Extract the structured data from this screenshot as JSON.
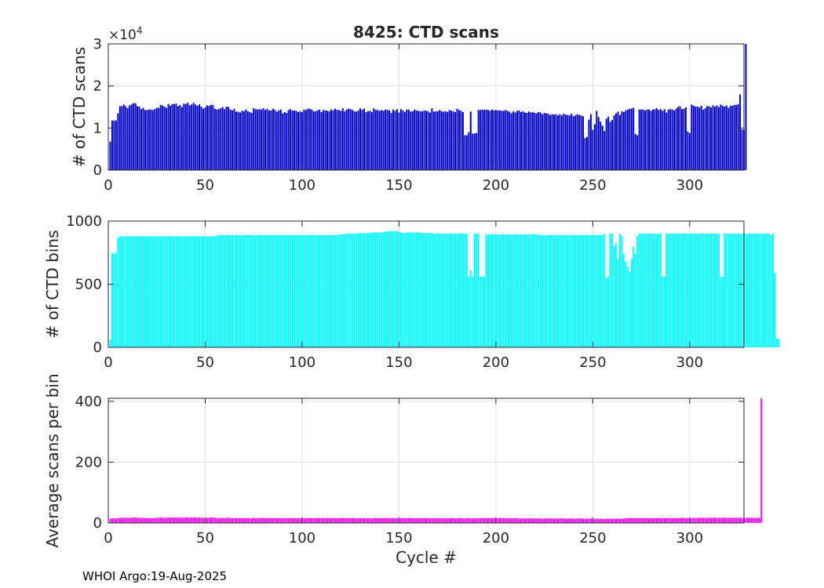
{
  "chart_data": [
    {
      "type": "bar",
      "title": "8425: CTD scans",
      "xlabel": "",
      "ylabel": "# of CTD scans",
      "exponent_label": "×10",
      "exponent_value": "4",
      "xlim": [
        0,
        328
      ],
      "ylim": [
        0,
        30000
      ],
      "xticks": [
        0,
        50,
        100,
        150,
        200,
        250,
        300
      ],
      "yticks": [
        0,
        10000,
        20000,
        30000
      ],
      "ytick_labels": [
        "0",
        "1",
        "2",
        "3"
      ],
      "grid": true,
      "color": "#0000cc",
      "series": [
        {
          "x_start": 1,
          "values": [
            6800,
            11800,
            11800,
            11800,
            13500,
            15200,
            15200,
            15600,
            15200,
            14700,
            15400,
            15600,
            15900,
            15900,
            15200,
            15100,
            14500,
            14800,
            14300,
            14300,
            14400,
            14400,
            14300,
            14500,
            14800,
            14800,
            15500,
            15400,
            15100,
            14800,
            15700,
            15300,
            15700,
            15700,
            15800,
            15200,
            15500,
            15000,
            15800,
            15700,
            16000,
            15400,
            15600,
            16000,
            15600,
            15300,
            15600,
            15100,
            14600,
            14900,
            15400,
            15300,
            15500,
            15500,
            14600,
            14400,
            14500,
            14700,
            15000,
            14500,
            15100,
            15000,
            14400,
            14200,
            14600,
            13900,
            13900,
            13700,
            14100,
            14000,
            14400,
            14000,
            13800,
            13600,
            14700,
            14500,
            14400,
            14500,
            14400,
            14700,
            14300,
            14600,
            14200,
            14200,
            14600,
            14300,
            13900,
            14200,
            14400,
            13500,
            13800,
            13600,
            14300,
            14500,
            14100,
            14200,
            14100,
            13800,
            14000,
            13800,
            14400,
            14300,
            14600,
            14600,
            14400,
            14000,
            14000,
            14200,
            14400,
            13800,
            14300,
            14200,
            14100,
            14000,
            14400,
            14200,
            14600,
            14300,
            14300,
            14100,
            14700,
            14000,
            14400,
            14600,
            14500,
            14300,
            14000,
            13900,
            14200,
            14700,
            14300,
            14600,
            13800,
            14000,
            14100,
            13800,
            14700,
            14300,
            14300,
            14100,
            14300,
            14100,
            14400,
            14300,
            14200,
            13600,
            14400,
            14100,
            14500,
            13700,
            14500,
            14200,
            13800,
            14400,
            14400,
            13900,
            14000,
            14400,
            14200,
            14100,
            14000,
            14000,
            14200,
            14100,
            14000,
            13700,
            14700,
            13900,
            14000,
            14000,
            14300,
            14000,
            13900,
            14000,
            13800,
            14300,
            14100,
            14000,
            13800,
            14600,
            14300,
            14100,
            13800,
            8300,
            8300,
            9000,
            13900,
            8700,
            8700,
            8800,
            14300,
            14300,
            14400,
            14300,
            14400,
            14300,
            14100,
            14400,
            14200,
            14300,
            14200,
            14200,
            14100,
            14100,
            14300,
            14100,
            13900,
            13500,
            14000,
            13700,
            14100,
            14200,
            13800,
            14000,
            13700,
            13600,
            13900,
            13700,
            13800,
            13600,
            13500,
            13800,
            13700,
            13300,
            13600,
            13500,
            13400,
            13100,
            13300,
            13200,
            13300,
            13000,
            13300,
            13000,
            13400,
            13200,
            13100,
            13000,
            13400,
            12800,
            13000,
            13300,
            13100,
            13000,
            12800,
            7600,
            7900,
            12000,
            13300,
            9600,
            10900,
            14100,
            12600,
            11500,
            10600,
            9300,
            12200,
            12700,
            11500,
            11900,
            13000,
            13500,
            13900,
            13100,
            14000,
            13800,
            14200,
            14400,
            14600,
            14600,
            14800,
            8600,
            8300,
            14400,
            14400,
            14400,
            14200,
            14400,
            14400,
            14100,
            14400,
            14500,
            14700,
            14300,
            14500,
            14100,
            14500,
            13700,
            14400,
            14500,
            14400,
            14200,
            14600,
            15000,
            15200,
            14500,
            14600,
            14900,
            9200,
            8800,
            15600,
            15300,
            15100,
            15100,
            14900,
            15300,
            14400,
            14700,
            15200,
            15200,
            14900,
            15400,
            15100,
            15400,
            15000,
            15600,
            15300,
            15100,
            15400,
            14800,
            15300,
            15300,
            15500,
            15500,
            15700,
            18000,
            9700,
            9600,
            30000
          ]
        }
      ]
    },
    {
      "type": "bar",
      "title": "",
      "xlabel": "",
      "ylabel": "# of CTD bins",
      "xlim": [
        0,
        328
      ],
      "ylim": [
        0,
        1000
      ],
      "xticks": [
        0,
        50,
        100,
        150,
        200,
        250,
        300
      ],
      "yticks": [
        0,
        500,
        1000
      ],
      "ytick_labels": [
        "0",
        "500",
        "1000"
      ],
      "grid": true,
      "color": "#00ffff",
      "series": [
        {
          "x_start": 1,
          "values": [
            60,
            750,
            740,
            750,
            870,
            880,
            880,
            880,
            880,
            880,
            880,
            880,
            880,
            880,
            880,
            880,
            880,
            880,
            880,
            880,
            880,
            880,
            880,
            880,
            880,
            880,
            880,
            880,
            880,
            880,
            880,
            880,
            880,
            880,
            880,
            880,
            880,
            880,
            880,
            880,
            880,
            880,
            880,
            880,
            880,
            880,
            880,
            880,
            880,
            880,
            880,
            880,
            880,
            880,
            880,
            885,
            890,
            890,
            890,
            890,
            890,
            890,
            890,
            890,
            890,
            890,
            890,
            890,
            890,
            890,
            890,
            890,
            890,
            890,
            890,
            890,
            890,
            890,
            890,
            890,
            890,
            890,
            890,
            890,
            890,
            890,
            890,
            890,
            890,
            890,
            890,
            890,
            890,
            890,
            890,
            890,
            890,
            890,
            890,
            890,
            890,
            890,
            890,
            890,
            890,
            890,
            890,
            890,
            890,
            890,
            890,
            890,
            890,
            890,
            890,
            890,
            890,
            890,
            895,
            895,
            895,
            895,
            900,
            900,
            900,
            900,
            900,
            900,
            905,
            905,
            905,
            905,
            905,
            905,
            905,
            910,
            910,
            910,
            910,
            910,
            910,
            915,
            915,
            920,
            920,
            920,
            920,
            920,
            920,
            915,
            910,
            905,
            905,
            910,
            910,
            910,
            910,
            910,
            910,
            910,
            910,
            905,
            905,
            905,
            905,
            905,
            905,
            900,
            900,
            905,
            900,
            900,
            900,
            900,
            900,
            900,
            900,
            900,
            900,
            900,
            900,
            900,
            900,
            900,
            900,
            560,
            610,
            560,
            900,
            900,
            900,
            560,
            560,
            560,
            895,
            895,
            895,
            895,
            895,
            895,
            895,
            895,
            895,
            895,
            895,
            895,
            895,
            895,
            895,
            895,
            895,
            895,
            895,
            895,
            895,
            895,
            895,
            895,
            895,
            895,
            895,
            890,
            890,
            890,
            890,
            890,
            890,
            890,
            890,
            890,
            890,
            890,
            890,
            890,
            890,
            890,
            890,
            890,
            890,
            890,
            890,
            890,
            890,
            890,
            890,
            890,
            890,
            890,
            890,
            890,
            890,
            890,
            890,
            890,
            890,
            900,
            550,
            560,
            900,
            900,
            800,
            830,
            700,
            900,
            880,
            740,
            680,
            640,
            600,
            700,
            800,
            740,
            880,
            900,
            900,
            900,
            900,
            900,
            900,
            900,
            900,
            900,
            900,
            900,
            900,
            560,
            560,
            900,
            900,
            900,
            900,
            900,
            900,
            900,
            900,
            900,
            900,
            900,
            900,
            900,
            900,
            900,
            900,
            900,
            900,
            900,
            900,
            900,
            900,
            900,
            900,
            900,
            900,
            900,
            900,
            560,
            560,
            900,
            900,
            900,
            900,
            900,
            900,
            900,
            900,
            900,
            900,
            900,
            900,
            900,
            900,
            900,
            900,
            900,
            900,
            900,
            900,
            900,
            900,
            900,
            900,
            890,
            900,
            590,
            70,
            70
          ]
        }
      ]
    },
    {
      "type": "bar",
      "title": "",
      "xlabel": "Cycle #",
      "ylabel": "Average scans per bin",
      "xlim": [
        0,
        328
      ],
      "ylim": [
        0,
        410
      ],
      "xticks": [
        0,
        50,
        100,
        150,
        200,
        250,
        300
      ],
      "yticks": [
        0,
        200,
        400
      ],
      "ytick_labels": [
        "0",
        "200",
        "400"
      ],
      "grid": true,
      "color": "#ff00ff",
      "series": [
        {
          "x_start": 1,
          "values": [
            14,
            15,
            15,
            15,
            16,
            17,
            17,
            17,
            17,
            17,
            17,
            17,
            18,
            18,
            17,
            17,
            16,
            17,
            16,
            16,
            16,
            16,
            16,
            16,
            17,
            17,
            18,
            17,
            17,
            17,
            18,
            17,
            18,
            18,
            18,
            17,
            18,
            17,
            18,
            18,
            18,
            17,
            18,
            18,
            18,
            17,
            18,
            17,
            17,
            17,
            17,
            17,
            18,
            18,
            17,
            16,
            16,
            16,
            17,
            16,
            17,
            17,
            16,
            16,
            16,
            16,
            16,
            15,
            16,
            16,
            16,
            16,
            16,
            15,
            17,
            16,
            16,
            16,
            16,
            17,
            16,
            16,
            16,
            16,
            16,
            16,
            16,
            16,
            16,
            15,
            16,
            15,
            16,
            16,
            16,
            16,
            16,
            16,
            16,
            16,
            16,
            16,
            16,
            16,
            16,
            16,
            16,
            16,
            16,
            16,
            16,
            16,
            16,
            16,
            16,
            16,
            16,
            16,
            16,
            16,
            16,
            16,
            16,
            16,
            16,
            16,
            16,
            15,
            16,
            16,
            16,
            16,
            15,
            15,
            16,
            15,
            16,
            16,
            16,
            16,
            16,
            16,
            16,
            16,
            16,
            16,
            16,
            16,
            16,
            16,
            16,
            16,
            16,
            16,
            16,
            16,
            16,
            16,
            16,
            16,
            16,
            16,
            16,
            16,
            16,
            16,
            16,
            15,
            16,
            16,
            16,
            16,
            15,
            16,
            15,
            16,
            16,
            16,
            15,
            16,
            16,
            16,
            15,
            15,
            16,
            16,
            15,
            16,
            15,
            15,
            16,
            16,
            16,
            16,
            16,
            16,
            16,
            16,
            16,
            16,
            16,
            16,
            16,
            16,
            16,
            15,
            16,
            15,
            16,
            16,
            15,
            15,
            15,
            15,
            15,
            15,
            15,
            15,
            15,
            15,
            15,
            15,
            15,
            14,
            15,
            15,
            15,
            15,
            15,
            14,
            15,
            14,
            15,
            15,
            15,
            14,
            14,
            15,
            15,
            14,
            14,
            15,
            15,
            15,
            14,
            14,
            14,
            14,
            15,
            14,
            14,
            14,
            14,
            14,
            14,
            13,
            14,
            14,
            14,
            14,
            14,
            14,
            14,
            14,
            14,
            15,
            15,
            16,
            16,
            16,
            16,
            16,
            16,
            16,
            16,
            16,
            16,
            16,
            15,
            16,
            16,
            16,
            16,
            16,
            16,
            16,
            16,
            16,
            16,
            16,
            16,
            16,
            16,
            16,
            16,
            17,
            17,
            16,
            16,
            16,
            16,
            17,
            16,
            16,
            17,
            17,
            17,
            17,
            16,
            17,
            17,
            17,
            17,
            17,
            17,
            17,
            17,
            17,
            17,
            17,
            17,
            17,
            17,
            17,
            17,
            17,
            17,
            17,
            17,
            17,
            17,
            17,
            17,
            16,
            17,
            17,
            410
          ]
        }
      ]
    }
  ],
  "footer": "WHOI Argo:19-Aug-2025"
}
